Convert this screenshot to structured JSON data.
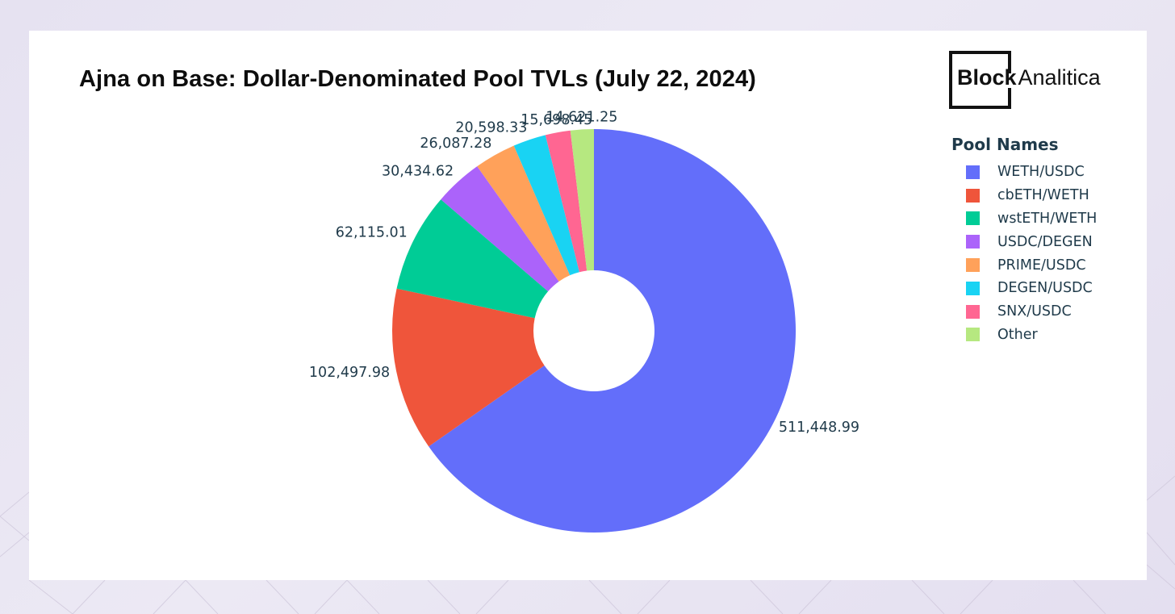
{
  "chart_data": {
    "type": "pie",
    "hole": true,
    "title": "Ajna on Base: Dollar-Denominated Pool TVLs (July 22, 2024)",
    "legend_title": "Pool Names",
    "legend_position": "right",
    "slices": [
      {
        "label": "WETH/USDC",
        "value": 511448.99,
        "text": "511,448.99",
        "color": "#636efa"
      },
      {
        "label": "cbETH/WETH",
        "value": 102497.98,
        "text": "102,497.98",
        "color": "#ef553b"
      },
      {
        "label": "wstETH/WETH",
        "value": 62115.01,
        "text": "62,115.01",
        "color": "#00cc96"
      },
      {
        "label": "USDC/DEGEN",
        "value": 30434.62,
        "text": "30,434.62",
        "color": "#ab63fa"
      },
      {
        "label": "PRIME/USDC",
        "value": 26087.28,
        "text": "26,087.28",
        "color": "#ffa15a"
      },
      {
        "label": "DEGEN/USDC",
        "value": 20598.33,
        "text": "20,598.33",
        "color": "#19d3f3"
      },
      {
        "label": "SNX/USDC",
        "value": 15698.45,
        "text": "15,698.45",
        "color": "#ff6692"
      },
      {
        "label": "Other",
        "value": 14621.25,
        "text": "14,621.25",
        "color": "#b6e880"
      }
    ]
  },
  "logo": {
    "bold": "Block",
    "regular": "Analitica"
  }
}
